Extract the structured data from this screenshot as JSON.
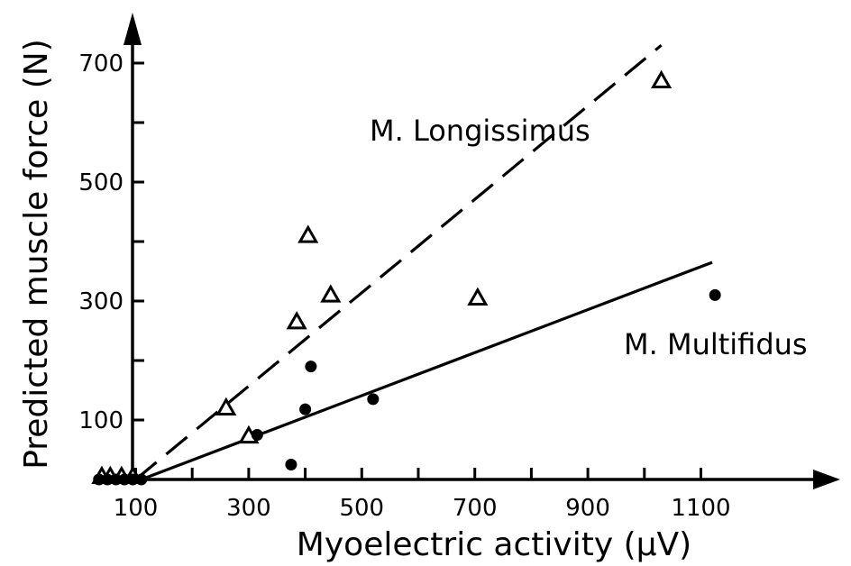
{
  "chart_data": {
    "type": "scatter",
    "xlabel": "Myoelectric activity (µV)",
    "ylabel": "Predicted muscle force (N)",
    "xlim": [
      0,
      1160
    ],
    "ylim": [
      0,
      780
    ],
    "x_ticks": [
      100,
      300,
      500,
      700,
      900,
      1100
    ],
    "y_ticks": [
      100,
      300,
      500,
      700
    ],
    "x_tick_labels": [
      "100",
      "300",
      "500",
      "700",
      "900",
      "1100"
    ],
    "y_tick_labels": [
      "100",
      "300",
      "500",
      "700"
    ],
    "series": [
      {
        "name": "M. Longissimus",
        "marker": "open-triangle",
        "line_style": "dashed",
        "points": [
          {
            "x": 40,
            "y": 5
          },
          {
            "x": 55,
            "y": 5
          },
          {
            "x": 75,
            "y": 5
          },
          {
            "x": 95,
            "y": 5
          },
          {
            "x": 260,
            "y": 120
          },
          {
            "x": 300,
            "y": 73
          },
          {
            "x": 385,
            "y": 265
          },
          {
            "x": 405,
            "y": 410
          },
          {
            "x": 445,
            "y": 310
          },
          {
            "x": 705,
            "y": 305
          },
          {
            "x": 1030,
            "y": 670
          }
        ],
        "fit_line": [
          {
            "x": 100,
            "y": 0
          },
          {
            "x": 1030,
            "y": 730
          }
        ]
      },
      {
        "name": "M. Multifidus",
        "marker": "filled-circle",
        "line_style": "solid",
        "points": [
          {
            "x": 35,
            "y": -15
          },
          {
            "x": 50,
            "y": -15
          },
          {
            "x": 65,
            "y": -15
          },
          {
            "x": 80,
            "y": -15
          },
          {
            "x": 95,
            "y": -15
          },
          {
            "x": 110,
            "y": -15
          },
          {
            "x": 315,
            "y": 75
          },
          {
            "x": 375,
            "y": 25
          },
          {
            "x": 400,
            "y": 118
          },
          {
            "x": 410,
            "y": 190
          },
          {
            "x": 520,
            "y": 135
          },
          {
            "x": 1125,
            "y": 310
          }
        ],
        "fit_line": [
          {
            "x": 110,
            "y": 0
          },
          {
            "x": 1120,
            "y": 365
          }
        ]
      }
    ],
    "colors": {
      "ink": "#000000",
      "background": "#ffffff"
    }
  }
}
